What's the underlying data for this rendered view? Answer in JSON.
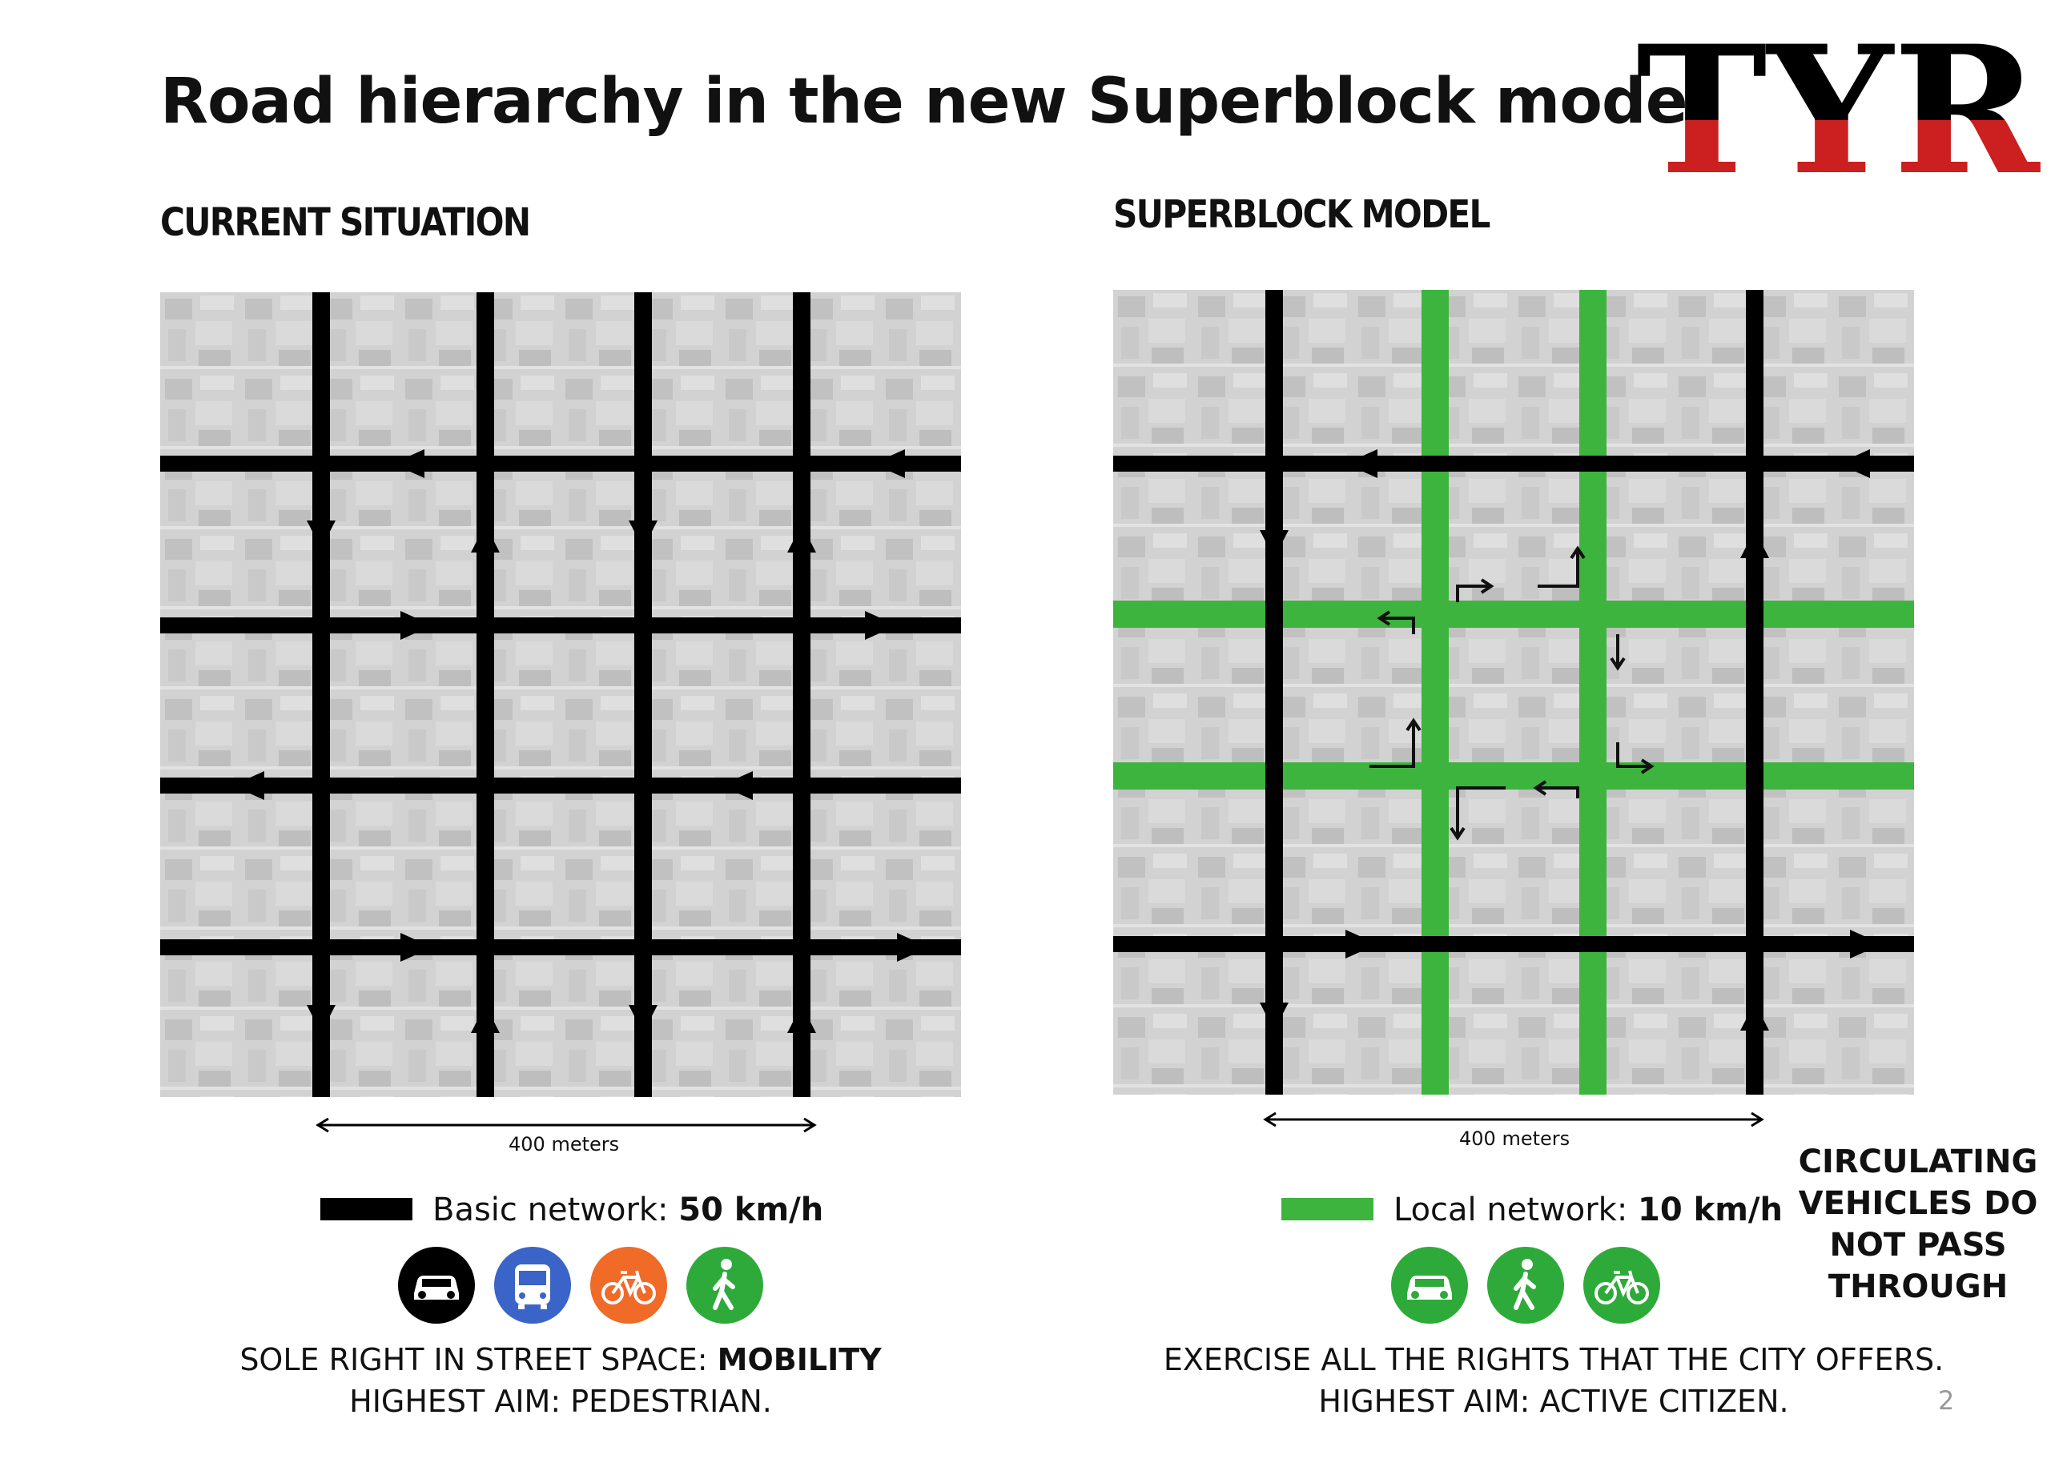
{
  "title": "Road hierarchy in the new Superblock model",
  "logo_text": "TYR",
  "left_panel": {
    "heading": "CURRENT SITUATION",
    "scale_label": "400 meters",
    "legend_label": "Basic network:",
    "legend_speed": "50 km/h",
    "icons": [
      "car-icon",
      "bus-icon",
      "bicycle-icon",
      "pedestrian-icon"
    ],
    "caption_line1_prefix": "SOLE RIGHT IN STREET SPACE:",
    "caption_line1_bold": "MOBILITY",
    "caption_line2": "HIGHEST AIM: PEDESTRIAN."
  },
  "right_panel": {
    "heading": "SUPERBLOCK MODEL",
    "scale_label": "400 meters",
    "legend_label": "Local network:",
    "legend_speed": "10 km/h",
    "icons": [
      "car-icon",
      "pedestrian-icon",
      "bicycle-icon"
    ],
    "caption_line1": "EXERCISE ALL THE RIGHTS THAT THE CITY OFFERS.",
    "caption_line2": "HIGHEST AIM: ACTIVE CITIZEN."
  },
  "note": "CIRCULATING VEHICLES DO NOT PASS THROUGH",
  "page_number": "2",
  "colors": {
    "basic_network": "#000000",
    "local_network": "#3db43d",
    "car": "#000000",
    "bus": "#3a64c8",
    "bicycle": "#f06a28",
    "pedestrian": "#2eaa3a",
    "logo_black": "#000000",
    "logo_red": "#cc1f1f"
  }
}
